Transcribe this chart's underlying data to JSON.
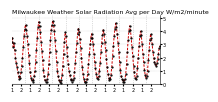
{
  "title": "Milwaukee Weather Solar Radiation Avg per Day W/m2/minute",
  "line_color": "#cc0000",
  "marker_color": "#000000",
  "bg_color": "#ffffff",
  "grid_color": "#bbbbbb",
  "values": [
    3.2,
    3.5,
    2.8,
    3.1,
    2.6,
    2.0,
    1.6,
    1.3,
    0.9,
    0.6,
    0.4,
    0.5,
    0.9,
    1.4,
    2.0,
    2.8,
    3.6,
    4.2,
    4.5,
    4.1,
    3.6,
    3.0,
    2.2,
    1.6,
    0.9,
    0.5,
    0.3,
    0.2,
    0.3,
    0.6,
    1.0,
    1.7,
    2.6,
    3.5,
    4.3,
    4.7,
    4.4,
    3.9,
    3.2,
    2.5,
    1.8,
    1.1,
    0.6,
    0.3,
    0.2,
    0.2,
    0.4,
    0.8,
    1.5,
    2.4,
    3.3,
    4.1,
    4.5,
    4.8,
    4.5,
    4.0,
    3.3,
    2.5,
    1.7,
    1.0,
    0.6,
    0.3,
    0.2,
    0.1,
    0.3,
    0.7,
    1.4,
    2.3,
    3.2,
    3.9,
    3.6,
    2.8,
    2.1,
    1.5,
    1.0,
    0.7,
    0.4,
    0.3,
    0.2,
    0.3,
    0.5,
    0.9,
    1.6,
    2.4,
    3.1,
    3.8,
    4.2,
    3.9,
    3.4,
    2.7,
    2.0,
    1.3,
    0.8,
    0.4,
    0.2,
    0.2,
    0.2,
    0.4,
    0.8,
    1.5,
    2.3,
    3.0,
    3.5,
    3.8,
    3.5,
    3.0,
    2.3,
    1.7,
    1.2,
    0.8,
    0.5,
    0.4,
    0.6,
    1.0,
    1.6,
    2.4,
    3.1,
    3.7,
    4.1,
    3.8,
    3.2,
    2.6,
    1.9,
    1.3,
    0.8,
    0.5,
    0.3,
    0.4,
    0.7,
    1.3,
    2.1,
    2.9,
    3.6,
    4.2,
    4.6,
    4.3,
    3.8,
    3.1,
    2.4,
    1.7,
    1.1,
    0.6,
    0.4,
    0.3,
    0.2,
    0.2,
    0.4,
    0.8,
    1.5,
    2.4,
    3.3,
    4.0,
    4.4,
    4.1,
    3.5,
    2.8,
    2.1,
    1.4,
    0.9,
    0.5,
    0.4,
    0.6,
    1.2,
    2.0,
    2.9,
    3.6,
    4.0,
    3.7,
    3.0,
    2.3,
    1.7,
    1.1,
    0.7,
    0.5,
    0.6,
    1.0,
    1.8,
    2.6,
    3.3,
    3.8,
    3.5,
    3.0,
    2.4,
    2.0,
    1.7,
    1.5,
    1.4,
    1.6,
    1.9,
    2.3,
    2.7,
    2.9
  ],
  "ylim": [
    0.0,
    5.2
  ],
  "ytick_positions": [
    0,
    1,
    2,
    3,
    4,
    5
  ],
  "ytick_labels": [
    "0",
    "1",
    "2",
    "3",
    "4",
    "5"
  ],
  "xtick_positions": [
    0,
    12,
    24,
    36,
    48,
    60,
    72,
    84,
    96,
    108,
    120,
    132,
    144,
    156,
    168,
    180
  ],
  "xtick_labels": [
    "1",
    "2",
    "1",
    "2",
    "1",
    "2",
    "1",
    "2",
    "1",
    "2",
    "1",
    "2",
    "1",
    "2",
    "1",
    "2"
  ],
  "num_vgrid": 10,
  "title_fontsize": 4.5,
  "tick_fontsize": 3.5,
  "line_width": 0.7,
  "marker_size": 1.2,
  "dash_on": 2.5,
  "dash_off": 1.5
}
